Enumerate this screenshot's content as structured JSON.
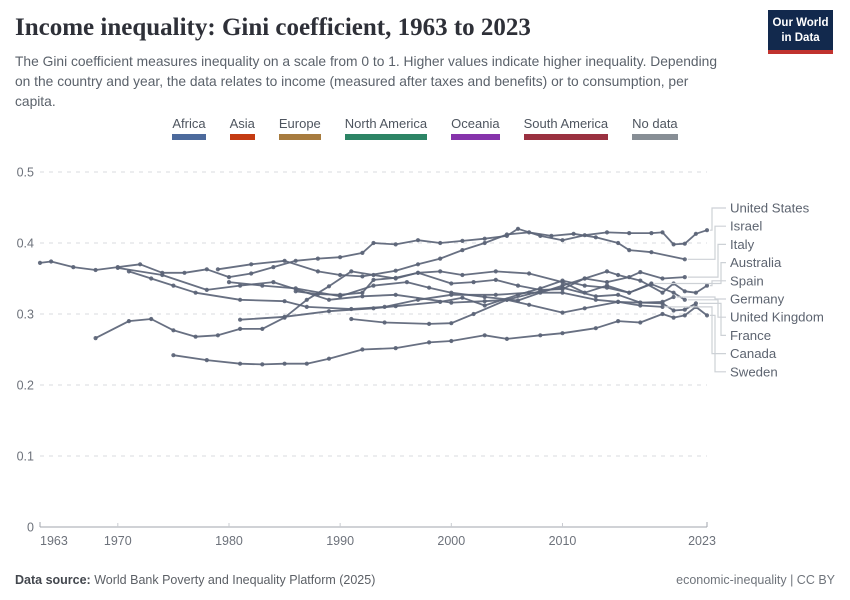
{
  "header": {
    "title": "Income inequality: Gini coefficient, 1963 to 2023",
    "subtitle": "The Gini coefficient measures inequality on a scale from 0 to 1. Higher values indicate higher inequality. Depending on the country and year, the data relates to income (measured after taxes and benefits) or to consumption, per capita.",
    "logo": {
      "line1": "Our World",
      "line2": "in Data",
      "bg_color": "#12294d",
      "stripe_color": "#c0322e"
    }
  },
  "legend": {
    "items": [
      {
        "label": "Africa",
        "color": "#4c6a9c"
      },
      {
        "label": "Asia",
        "color": "#c43b12"
      },
      {
        "label": "Europe",
        "color": "#a77b3e"
      },
      {
        "label": "North America",
        "color": "#2c8465"
      },
      {
        "label": "Oceania",
        "color": "#8633ab"
      },
      {
        "label": "South America",
        "color": "#9a3140"
      },
      {
        "label": "No data",
        "color": "#878e95"
      }
    ]
  },
  "chart_data": {
    "type": "line",
    "title": "Income inequality: Gini coefficient, 1963 to 2023",
    "xlabel": "",
    "ylabel": "",
    "xlim": [
      1963,
      2023
    ],
    "ylim": [
      0,
      0.5
    ],
    "grid": "horizontal-dashed",
    "legend_position": "right-end-labels",
    "line_color": "#5b6477",
    "grid_color": "#d8dbdf",
    "axis_color": "#a2a6ac",
    "tick_label_color": "#6d727b",
    "end_label_color": "#5d6470",
    "connector_color": "#cdd1d6",
    "x_ticks": [
      {
        "value": 1963,
        "label": "1963"
      },
      {
        "value": 1970,
        "label": "1970"
      },
      {
        "value": 1980,
        "label": "1980"
      },
      {
        "value": 1990,
        "label": "1990"
      },
      {
        "value": 2000,
        "label": "2000"
      },
      {
        "value": 2010,
        "label": "2010"
      },
      {
        "value": 2023,
        "label": "2023"
      }
    ],
    "y_ticks": [
      {
        "value": 0,
        "label": "0"
      },
      {
        "value": 0.1,
        "label": "0.1"
      },
      {
        "value": 0.2,
        "label": "0.2"
      },
      {
        "value": 0.3,
        "label": "0.3"
      },
      {
        "value": 0.4,
        "label": "0.4"
      },
      {
        "value": 0.5,
        "label": "0.5"
      }
    ],
    "series": [
      {
        "name": "United States",
        "points": [
          [
            1963,
            0.372
          ],
          [
            1964,
            0.374
          ],
          [
            1966,
            0.366
          ],
          [
            1968,
            0.362
          ],
          [
            1970,
            0.366
          ],
          [
            1972,
            0.37
          ],
          [
            1974,
            0.358
          ],
          [
            1976,
            0.358
          ],
          [
            1978,
            0.363
          ],
          [
            1980,
            0.352
          ],
          [
            1982,
            0.357
          ],
          [
            1984,
            0.366
          ],
          [
            1986,
            0.375
          ],
          [
            1988,
            0.378
          ],
          [
            1990,
            0.38
          ],
          [
            1992,
            0.386
          ],
          [
            1993,
            0.4
          ],
          [
            1995,
            0.398
          ],
          [
            1997,
            0.404
          ],
          [
            1999,
            0.4
          ],
          [
            2001,
            0.403
          ],
          [
            2003,
            0.406
          ],
          [
            2005,
            0.41
          ],
          [
            2006,
            0.42
          ],
          [
            2008,
            0.41
          ],
          [
            2010,
            0.404
          ],
          [
            2012,
            0.411
          ],
          [
            2014,
            0.415
          ],
          [
            2016,
            0.414
          ],
          [
            2018,
            0.414
          ],
          [
            2019,
            0.415
          ],
          [
            2020,
            0.398
          ],
          [
            2021,
            0.399
          ],
          [
            2022,
            0.413
          ],
          [
            2023,
            0.418
          ]
        ]
      },
      {
        "name": "Israel",
        "points": [
          [
            1979,
            0.363
          ],
          [
            1982,
            0.37
          ],
          [
            1985,
            0.375
          ],
          [
            1988,
            0.36
          ],
          [
            1990,
            0.355
          ],
          [
            1992,
            0.353
          ],
          [
            1995,
            0.361
          ],
          [
            1997,
            0.37
          ],
          [
            1999,
            0.378
          ],
          [
            2001,
            0.39
          ],
          [
            2003,
            0.4
          ],
          [
            2005,
            0.412
          ],
          [
            2007,
            0.415
          ],
          [
            2009,
            0.41
          ],
          [
            2011,
            0.413
          ],
          [
            2013,
            0.408
          ],
          [
            2015,
            0.4
          ],
          [
            2016,
            0.39
          ],
          [
            2018,
            0.387
          ],
          [
            2021,
            0.377
          ]
        ]
      },
      {
        "name": "Italy",
        "points": [
          [
            1986,
            0.332
          ],
          [
            1988,
            0.328
          ],
          [
            1990,
            0.327
          ],
          [
            1992,
            0.33
          ],
          [
            1993,
            0.348
          ],
          [
            1995,
            0.351
          ],
          [
            1997,
            0.358
          ],
          [
            2000,
            0.343
          ],
          [
            2002,
            0.345
          ],
          [
            2004,
            0.348
          ],
          [
            2006,
            0.34
          ],
          [
            2008,
            0.334
          ],
          [
            2010,
            0.335
          ],
          [
            2012,
            0.35
          ],
          [
            2014,
            0.345
          ],
          [
            2016,
            0.352
          ],
          [
            2017,
            0.359
          ],
          [
            2019,
            0.35
          ],
          [
            2021,
            0.352
          ]
        ]
      },
      {
        "name": "Australia",
        "points": [
          [
            1981,
            0.292
          ],
          [
            1985,
            0.296
          ],
          [
            1989,
            0.304
          ],
          [
            1993,
            0.308
          ],
          [
            1995,
            0.311
          ],
          [
            1999,
            0.317
          ],
          [
            2001,
            0.323
          ],
          [
            2003,
            0.312
          ],
          [
            2006,
            0.327
          ],
          [
            2008,
            0.336
          ],
          [
            2010,
            0.347
          ],
          [
            2012,
            0.34
          ],
          [
            2014,
            0.337
          ],
          [
            2016,
            0.33
          ],
          [
            2018,
            0.343
          ]
        ]
      },
      {
        "name": "Spain",
        "points": [
          [
            1980,
            0.345
          ],
          [
            1983,
            0.34
          ],
          [
            1986,
            0.336
          ],
          [
            1990,
            0.325
          ],
          [
            1993,
            0.34
          ],
          [
            1996,
            0.345
          ],
          [
            1998,
            0.337
          ],
          [
            2000,
            0.33
          ],
          [
            2003,
            0.324
          ],
          [
            2006,
            0.319
          ],
          [
            2008,
            0.33
          ],
          [
            2010,
            0.34
          ],
          [
            2012,
            0.35
          ],
          [
            2014,
            0.36
          ],
          [
            2015,
            0.355
          ],
          [
            2017,
            0.347
          ],
          [
            2019,
            0.33
          ],
          [
            2020,
            0.343
          ],
          [
            2021,
            0.332
          ],
          [
            2022,
            0.33
          ],
          [
            2023,
            0.34
          ]
        ]
      },
      {
        "name": "Germany",
        "points": [
          [
            1991,
            0.293
          ],
          [
            1994,
            0.288
          ],
          [
            1998,
            0.286
          ],
          [
            2000,
            0.287
          ],
          [
            2002,
            0.3
          ],
          [
            2005,
            0.32
          ],
          [
            2007,
            0.313
          ],
          [
            2010,
            0.302
          ],
          [
            2012,
            0.308
          ],
          [
            2015,
            0.317
          ],
          [
            2017,
            0.316
          ],
          [
            2019,
            0.317
          ],
          [
            2020,
            0.324
          ]
        ]
      },
      {
        "name": "United Kingdom",
        "points": [
          [
            1968,
            0.266
          ],
          [
            1971,
            0.29
          ],
          [
            1973,
            0.293
          ],
          [
            1975,
            0.277
          ],
          [
            1977,
            0.268
          ],
          [
            1979,
            0.27
          ],
          [
            1981,
            0.279
          ],
          [
            1983,
            0.279
          ],
          [
            1985,
            0.295
          ],
          [
            1987,
            0.32
          ],
          [
            1989,
            0.339
          ],
          [
            1991,
            0.36
          ],
          [
            1993,
            0.355
          ],
          [
            1995,
            0.35
          ],
          [
            1997,
            0.358
          ],
          [
            1999,
            0.36
          ],
          [
            2001,
            0.355
          ],
          [
            2004,
            0.36
          ],
          [
            2007,
            0.357
          ],
          [
            2010,
            0.345
          ],
          [
            2012,
            0.33
          ],
          [
            2014,
            0.34
          ],
          [
            2016,
            0.33
          ],
          [
            2018,
            0.342
          ],
          [
            2020,
            0.33
          ],
          [
            2021,
            0.32
          ]
        ]
      },
      {
        "name": "France",
        "points": [
          [
            1970,
            0.365
          ],
          [
            1974,
            0.355
          ],
          [
            1978,
            0.334
          ],
          [
            1981,
            0.34
          ],
          [
            1984,
            0.345
          ],
          [
            1989,
            0.32
          ],
          [
            1992,
            0.325
          ],
          [
            1995,
            0.327
          ],
          [
            2000,
            0.316
          ],
          [
            2003,
            0.318
          ],
          [
            2005,
            0.32
          ],
          [
            2008,
            0.332
          ],
          [
            2010,
            0.337
          ],
          [
            2013,
            0.325
          ],
          [
            2015,
            0.327
          ],
          [
            2017,
            0.316
          ],
          [
            2019,
            0.315
          ],
          [
            2020,
            0.305
          ],
          [
            2021,
            0.306
          ],
          [
            2022,
            0.315
          ]
        ]
      },
      {
        "name": "Canada",
        "points": [
          [
            1971,
            0.36
          ],
          [
            1973,
            0.35
          ],
          [
            1975,
            0.34
          ],
          [
            1977,
            0.33
          ],
          [
            1981,
            0.32
          ],
          [
            1985,
            0.318
          ],
          [
            1987,
            0.31
          ],
          [
            1991,
            0.307
          ],
          [
            1994,
            0.31
          ],
          [
            1997,
            0.32
          ],
          [
            2000,
            0.327
          ],
          [
            2004,
            0.327
          ],
          [
            2007,
            0.33
          ],
          [
            2010,
            0.33
          ],
          [
            2013,
            0.32
          ],
          [
            2015,
            0.317
          ],
          [
            2017,
            0.312
          ],
          [
            2019,
            0.31
          ]
        ]
      },
      {
        "name": "Sweden",
        "points": [
          [
            1975,
            0.242
          ],
          [
            1978,
            0.235
          ],
          [
            1981,
            0.23
          ],
          [
            1983,
            0.229
          ],
          [
            1985,
            0.23
          ],
          [
            1987,
            0.23
          ],
          [
            1989,
            0.237
          ],
          [
            1992,
            0.25
          ],
          [
            1995,
            0.252
          ],
          [
            1998,
            0.26
          ],
          [
            2000,
            0.262
          ],
          [
            2003,
            0.27
          ],
          [
            2005,
            0.265
          ],
          [
            2008,
            0.27
          ],
          [
            2010,
            0.273
          ],
          [
            2013,
            0.28
          ],
          [
            2015,
            0.29
          ],
          [
            2017,
            0.288
          ],
          [
            2019,
            0.3
          ],
          [
            2020,
            0.295
          ],
          [
            2021,
            0.298
          ],
          [
            2022,
            0.31
          ],
          [
            2023,
            0.298
          ]
        ]
      }
    ]
  },
  "footer": {
    "source_label": "Data source:",
    "source_text": "World Bank Poverty and Inequality Platform (2025)",
    "attribution": "economic-inequality | CC BY"
  }
}
